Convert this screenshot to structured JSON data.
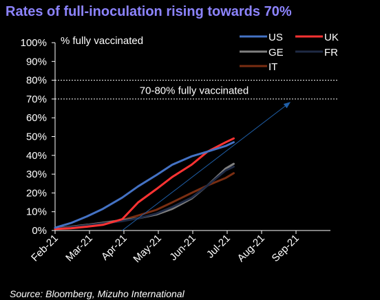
{
  "page": {
    "title": "Rates of full-inoculation rising towards 70%",
    "source": "Source: Bloomberg, Mizuho International"
  },
  "chart_data": {
    "type": "line",
    "title": "Rates of full-inoculation rising towards 70%",
    "ylabel": "% fully vaccinated",
    "ylim": [
      0,
      100
    ],
    "y_ticks": [
      "0%",
      "10%",
      "20%",
      "30%",
      "40%",
      "50%",
      "60%",
      "70%",
      "80%",
      "90%",
      "100%"
    ],
    "x_ticks": [
      "Feb-21",
      "Mar-21",
      "Apr-21",
      "May-21",
      "Jun-21",
      "Jul-21",
      "Aug-21",
      "Sep-21"
    ],
    "x_range": [
      "2021-02-01",
      "2021-10-01"
    ],
    "grid": false,
    "legend_position": "top-right",
    "band": {
      "lower": 70,
      "upper": 80,
      "label": "70-80% fully vaccinated"
    },
    "trend_arrow": {
      "from": [
        "2021-04-01",
        0
      ],
      "to": [
        "2021-08-26",
        68
      ]
    },
    "series": [
      {
        "name": "US",
        "color": "#4472c4",
        "points": [
          [
            "2021-02-01",
            1.5
          ],
          [
            "2021-02-15",
            4
          ],
          [
            "2021-03-01",
            7.5
          ],
          [
            "2021-03-15",
            11.5
          ],
          [
            "2021-04-01",
            17.5
          ],
          [
            "2021-04-15",
            23.5
          ],
          [
            "2021-05-01",
            29.5
          ],
          [
            "2021-05-15",
            35
          ],
          [
            "2021-06-01",
            39.5
          ],
          [
            "2021-06-15",
            42
          ],
          [
            "2021-07-01",
            45
          ],
          [
            "2021-07-08",
            47
          ]
        ]
      },
      {
        "name": "UK",
        "color": "#ff3333",
        "points": [
          [
            "2021-02-01",
            0.8
          ],
          [
            "2021-02-15",
            1.2
          ],
          [
            "2021-03-01",
            2
          ],
          [
            "2021-03-15",
            3
          ],
          [
            "2021-04-01",
            6
          ],
          [
            "2021-04-15",
            15
          ],
          [
            "2021-05-01",
            22
          ],
          [
            "2021-05-15",
            28.5
          ],
          [
            "2021-06-01",
            35
          ],
          [
            "2021-06-15",
            42
          ],
          [
            "2021-07-01",
            47
          ],
          [
            "2021-07-08",
            49
          ]
        ]
      },
      {
        "name": "GE",
        "color": "#808080",
        "points": [
          [
            "2021-02-01",
            1
          ],
          [
            "2021-03-01",
            3
          ],
          [
            "2021-04-01",
            5.5
          ],
          [
            "2021-04-15",
            6.5
          ],
          [
            "2021-05-01",
            8.5
          ],
          [
            "2021-05-15",
            11.5
          ],
          [
            "2021-06-01",
            17
          ],
          [
            "2021-06-15",
            24
          ],
          [
            "2021-07-01",
            33
          ],
          [
            "2021-07-08",
            35.5
          ]
        ]
      },
      {
        "name": "FR",
        "color": "#1f2a44",
        "points": [
          [
            "2021-02-01",
            0.8
          ],
          [
            "2021-03-01",
            2.8
          ],
          [
            "2021-04-01",
            5
          ],
          [
            "2021-04-15",
            6.5
          ],
          [
            "2021-05-01",
            9
          ],
          [
            "2021-05-15",
            12.5
          ],
          [
            "2021-06-01",
            17.5
          ],
          [
            "2021-06-15",
            24
          ],
          [
            "2021-07-01",
            32
          ],
          [
            "2021-07-08",
            34
          ]
        ]
      },
      {
        "name": "IT",
        "color": "#7a2e12",
        "points": [
          [
            "2021-02-01",
            1
          ],
          [
            "2021-03-01",
            3
          ],
          [
            "2021-04-01",
            5.5
          ],
          [
            "2021-04-15",
            8
          ],
          [
            "2021-05-01",
            11
          ],
          [
            "2021-05-15",
            15
          ],
          [
            "2021-06-01",
            20
          ],
          [
            "2021-06-15",
            24
          ],
          [
            "2021-07-01",
            28
          ],
          [
            "2021-07-08",
            30.5
          ]
        ]
      }
    ]
  }
}
